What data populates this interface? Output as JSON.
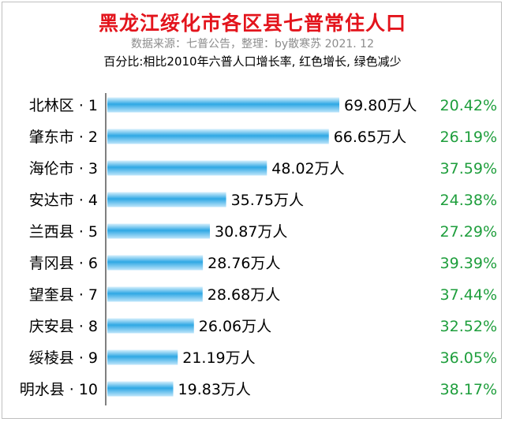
{
  "chart_data": {
    "type": "bar",
    "orientation": "horizontal",
    "title": "黑龙江绥化市各区县七普常住人口",
    "subtitle": "数据来源：七普公告，整理：by散寒苏  2021. 12",
    "note": "百分比:相比2010年六普人口增长率, 红色增长, 绿色减少",
    "categories": [
      "北林区 · 1",
      "肇东市 · 2",
      "海伦市 · 3",
      "安达市 · 4",
      "兰西县 · 5",
      "青冈县 · 6",
      "望奎县 · 7",
      "庆安县 · 8",
      "绥棱县 · 9",
      "明水县 · 10"
    ],
    "values": [
      69.8,
      66.65,
      48.02,
      35.75,
      30.87,
      28.76,
      28.68,
      26.06,
      21.19,
      19.83
    ],
    "value_labels": [
      "69.80万人",
      "66.65万人",
      "48.02万人",
      "35.75万人",
      "30.87万人",
      "28.76万人",
      "28.68万人",
      "26.06万人",
      "21.19万人",
      "19.83万人"
    ],
    "percent_labels": [
      "20.42%",
      "26.19%",
      "37.59%",
      "24.38%",
      "27.29%",
      "39.39%",
      "37.44%",
      "32.52%",
      "36.05%",
      "38.17%"
    ],
    "unit": "万人",
    "bar_color": "#2fa8e4",
    "percent_color": "#1e9e3c",
    "title_color": "#e3141c",
    "grid": false,
    "legend": "none"
  }
}
